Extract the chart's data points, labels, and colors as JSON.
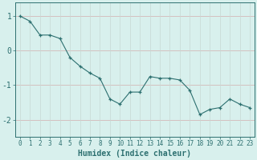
{
  "x": [
    0,
    1,
    2,
    3,
    4,
    5,
    6,
    7,
    8,
    9,
    10,
    11,
    12,
    13,
    14,
    15,
    16,
    17,
    18,
    19,
    20,
    21,
    22,
    23
  ],
  "y": [
    1.0,
    0.85,
    0.45,
    0.45,
    0.35,
    -0.2,
    -0.45,
    -0.65,
    -0.8,
    -1.4,
    -1.55,
    -1.2,
    -1.2,
    -0.75,
    -0.8,
    -0.8,
    -0.85,
    -1.15,
    -1.85,
    -1.7,
    -1.65,
    -1.4,
    -1.55,
    -1.65
  ],
  "bg_color": "#d8f0ed",
  "line_color": "#2d7070",
  "marker_color": "#2d7070",
  "grid_color_h": "#d4b8b8",
  "grid_color_v": "#c8d8d4",
  "axis_color": "#2d7070",
  "tick_color": "#2d7070",
  "xlabel": "Humidex (Indice chaleur)",
  "yticks": [
    -2,
    -1,
    0,
    1
  ],
  "ylim": [
    -2.5,
    1.4
  ],
  "xlim": [
    -0.5,
    23.5
  ],
  "xtick_labels": [
    "0",
    "1",
    "2",
    "3",
    "4",
    "5",
    "6",
    "7",
    "8",
    "9",
    "10",
    "11",
    "12",
    "13",
    "14",
    "15",
    "16",
    "17",
    "18",
    "19",
    "20",
    "21",
    "22",
    "23"
  ],
  "xlabel_fontsize": 7,
  "ytick_fontsize": 7,
  "xtick_fontsize": 5.5
}
